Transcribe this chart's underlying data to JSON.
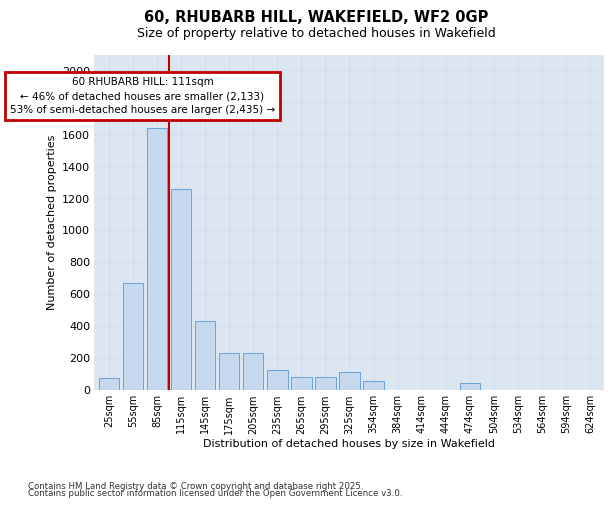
{
  "title_line1": "60, RHUBARB HILL, WAKEFIELD, WF2 0GP",
  "title_line2": "Size of property relative to detached houses in Wakefield",
  "xlabel": "Distribution of detached houses by size in Wakefield",
  "ylabel": "Number of detached properties",
  "categories": [
    "25sqm",
    "55sqm",
    "85sqm",
    "115sqm",
    "145sqm",
    "175sqm",
    "205sqm",
    "235sqm",
    "265sqm",
    "295sqm",
    "325sqm",
    "354sqm",
    "384sqm",
    "414sqm",
    "444sqm",
    "474sqm",
    "504sqm",
    "534sqm",
    "564sqm",
    "594sqm",
    "624sqm"
  ],
  "values": [
    75,
    670,
    1640,
    1260,
    430,
    230,
    230,
    120,
    80,
    80,
    110,
    55,
    0,
    0,
    0,
    40,
    0,
    0,
    0,
    0,
    0
  ],
  "bar_color": "#c5d8ed",
  "bar_edge_color": "#5b9bd5",
  "vline_index": 3,
  "vline_color": "#c00000",
  "annotation_text": "60 RHUBARB HILL: 111sqm\n← 46% of detached houses are smaller (2,133)\n53% of semi-detached houses are larger (2,435) →",
  "annotation_box_color": "#ffffff",
  "annotation_box_edge_color": "#c00000",
  "ylim": [
    0,
    2100
  ],
  "yticks": [
    0,
    200,
    400,
    600,
    800,
    1000,
    1200,
    1400,
    1600,
    1800,
    2000
  ],
  "footnote1": "Contains HM Land Registry data © Crown copyright and database right 2025.",
  "footnote2": "Contains public sector information licensed under the Open Government Licence v3.0.",
  "grid_color": "#d0dcea",
  "bg_color": "#dce6f1",
  "fig_bg": "#ffffff"
}
